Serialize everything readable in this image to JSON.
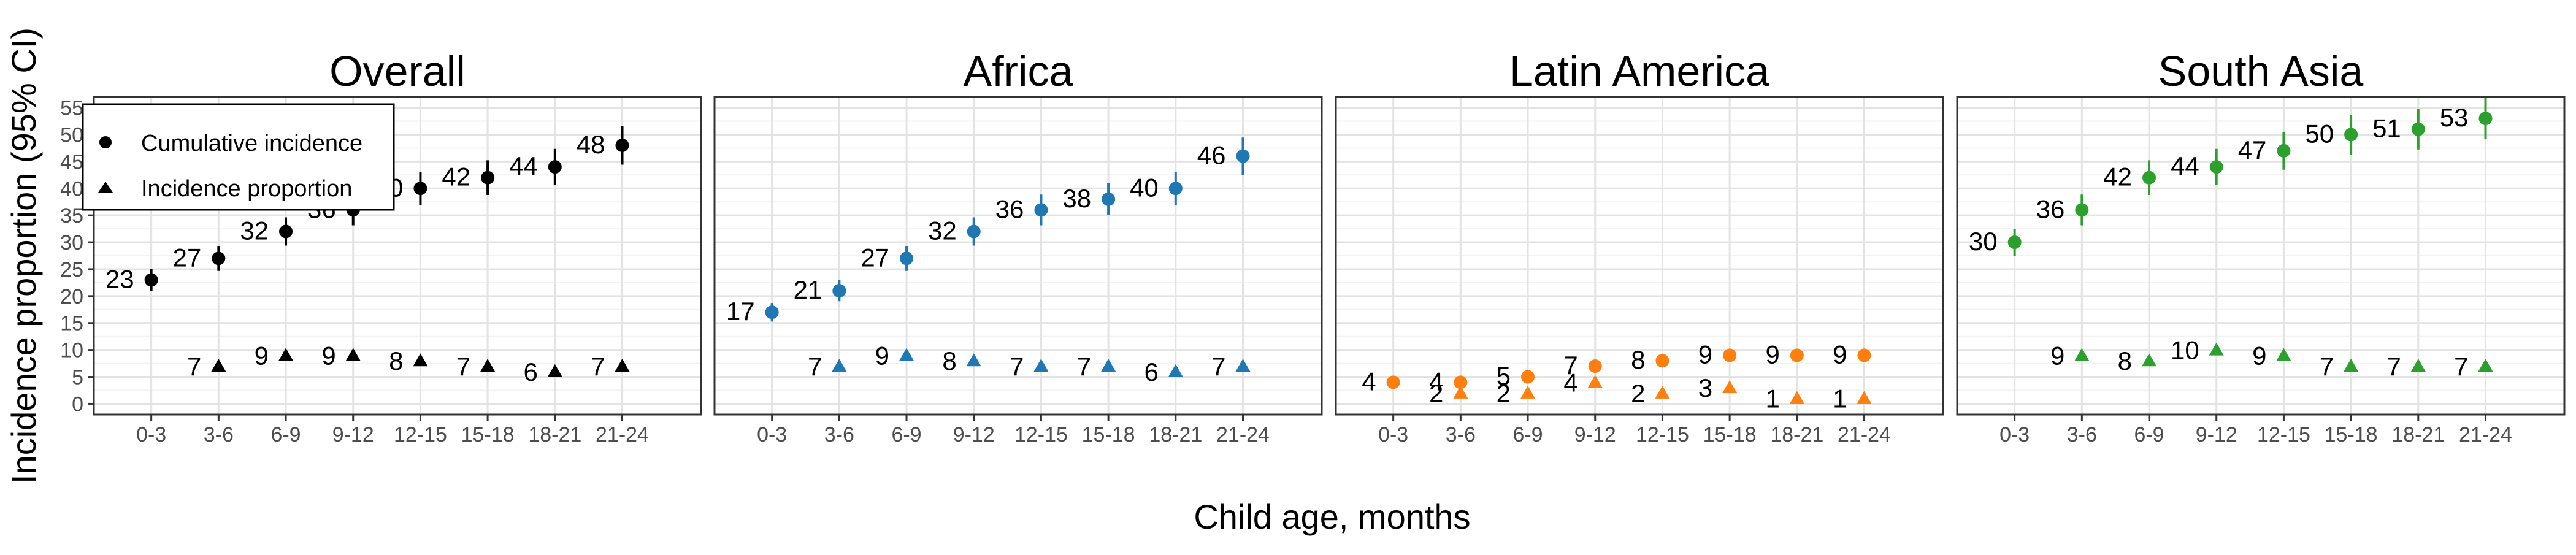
{
  "chart_data": {
    "type": "scatter",
    "ylabel": "Incidence proportion (95% CI)",
    "xlabel": "Child age, months",
    "categories": [
      "0-3",
      "3-6",
      "6-9",
      "9-12",
      "12-15",
      "15-18",
      "18-21",
      "21-24"
    ],
    "ylim": [
      -2,
      57
    ],
    "yticks": [
      0,
      5,
      10,
      15,
      20,
      25,
      30,
      35,
      40,
      45,
      50,
      55
    ],
    "grid": true,
    "legend": {
      "placement": "top-left",
      "entries": [
        {
          "label": "Cumulative incidence",
          "marker": "circle"
        },
        {
          "label": "Incidence proportion",
          "marker": "triangle"
        }
      ]
    },
    "panels": [
      {
        "title": "Overall",
        "color": "#000000",
        "cumulative": {
          "x": [
            "0-3",
            "3-6",
            "6-9",
            "9-12",
            "12-15",
            "15-18",
            "18-21",
            "21-24"
          ],
          "values": [
            23,
            27,
            32,
            36,
            40,
            42,
            44,
            48
          ],
          "labels": [
            "23",
            "27",
            "32",
            "36",
            "40",
            "42",
            "44",
            "48"
          ]
        },
        "incidence": {
          "x": [
            "3-6",
            "6-9",
            "9-12",
            "12-15",
            "15-18",
            "18-21",
            "21-24"
          ],
          "values": [
            7,
            9,
            9,
            8,
            7,
            6,
            7
          ],
          "labels": [
            "7",
            "9",
            "9",
            "8",
            "7",
            "6",
            "7"
          ]
        }
      },
      {
        "title": "Africa",
        "color": "#1f77b4",
        "cumulative": {
          "x": [
            "0-3",
            "3-6",
            "6-9",
            "9-12",
            "12-15",
            "15-18",
            "18-21",
            "21-24"
          ],
          "values": [
            17,
            21,
            27,
            32,
            36,
            38,
            40,
            46
          ],
          "labels": [
            "17",
            "21",
            "27",
            "32",
            "36",
            "38",
            "40",
            "46"
          ]
        },
        "incidence": {
          "x": [
            "3-6",
            "6-9",
            "9-12",
            "12-15",
            "15-18",
            "18-21",
            "21-24"
          ],
          "values": [
            7,
            9,
            8,
            7,
            7,
            6,
            7
          ],
          "labels": [
            "7",
            "9",
            "8",
            "7",
            "7",
            "6",
            "7"
          ]
        }
      },
      {
        "title": "Latin America",
        "color": "#ff7f0e",
        "cumulative": {
          "x": [
            "0-3",
            "3-6",
            "6-9",
            "9-12",
            "12-15",
            "15-18",
            "18-21",
            "21-24"
          ],
          "values": [
            4,
            4,
            5,
            7,
            8,
            9,
            9,
            9
          ],
          "labels": [
            "4",
            "4",
            "5",
            "7",
            "8",
            "9",
            "9",
            "9"
          ]
        },
        "incidence": {
          "x": [
            "3-6",
            "6-9",
            "9-12",
            "12-15",
            "15-18",
            "18-21",
            "21-24"
          ],
          "values": [
            2,
            2,
            4,
            2,
            3,
            1,
            1
          ],
          "labels": [
            "2",
            "2",
            "4",
            "2",
            "3",
            "1",
            "1"
          ]
        }
      },
      {
        "title": "South Asia",
        "color": "#2ca02c",
        "cumulative": {
          "x": [
            "0-3",
            "3-6",
            "6-9",
            "9-12",
            "12-15",
            "15-18",
            "18-21",
            "21-24"
          ],
          "values": [
            30,
            36,
            42,
            44,
            47,
            50,
            51,
            53
          ],
          "labels": [
            "30",
            "36",
            "42",
            "44",
            "47",
            "50",
            "51",
            "53"
          ]
        },
        "incidence": {
          "x": [
            "3-6",
            "6-9",
            "9-12",
            "12-15",
            "15-18",
            "18-21",
            "21-24"
          ],
          "values": [
            9,
            8,
            10,
            9,
            7,
            7,
            7
          ],
          "labels": [
            "9",
            "8",
            "10",
            "9",
            "7",
            "7",
            "7"
          ]
        }
      }
    ]
  }
}
